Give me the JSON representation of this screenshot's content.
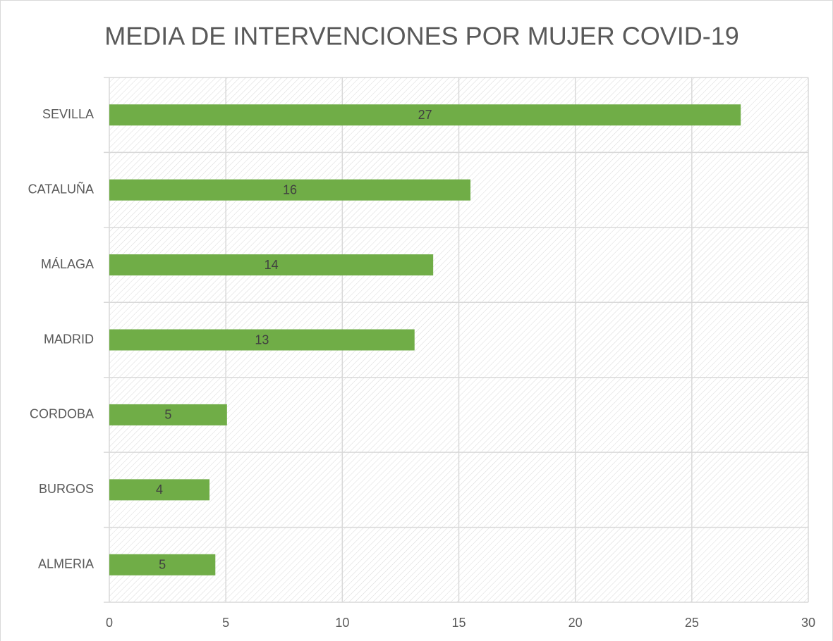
{
  "chart_data": {
    "type": "bar",
    "orientation": "horizontal",
    "title": "MEDIA DE INTERVENCIONES POR MUJER COVID-19",
    "categories": [
      "SEVILLA",
      "CATALUÑA",
      "MÁLAGA",
      "MADRID",
      "CORDOBA",
      "BURGOS",
      "ALMERIA"
    ],
    "values": [
      27.1,
      15.5,
      13.9,
      13.1,
      5.05,
      4.3,
      4.55
    ],
    "value_labels": [
      "27",
      "16",
      "14",
      "13",
      "5",
      "4",
      "5"
    ],
    "color": "#70ad47",
    "xlim": [
      0,
      30
    ],
    "xticks": [
      0,
      5,
      10,
      15,
      20,
      25,
      30
    ],
    "grid": true
  }
}
